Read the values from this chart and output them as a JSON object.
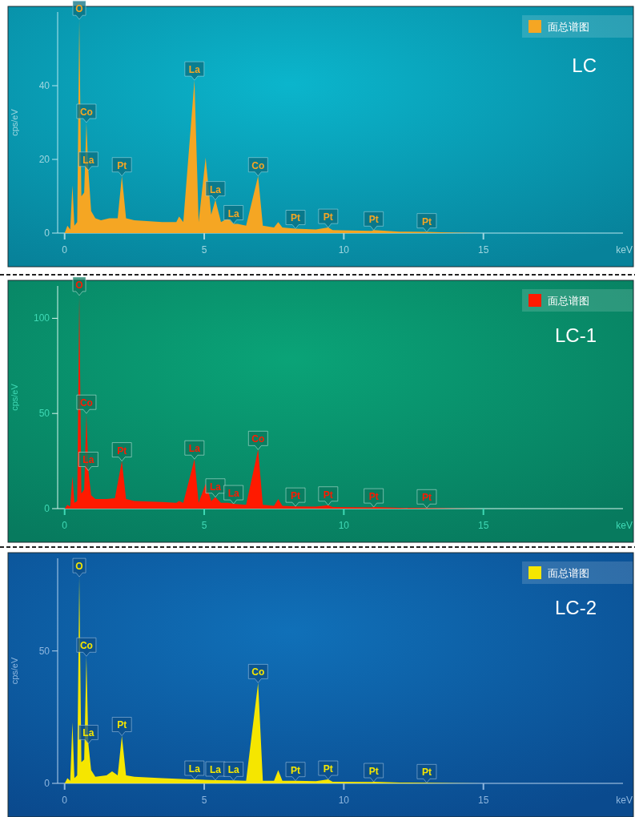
{
  "chart_data": [
    {
      "type": "area",
      "title": "LC",
      "xlabel": "keV",
      "ylabel": "cps/eV",
      "legend": "top right",
      "xlim": [
        -0.25,
        20
      ],
      "ylim": [
        0,
        60
      ],
      "xticks": [
        0,
        5,
        10,
        15
      ],
      "yticks": [
        0,
        20,
        40
      ],
      "x": [
        0,
        0.1,
        0.2,
        0.28,
        0.35,
        0.45,
        0.525,
        0.6,
        0.7,
        0.78,
        0.85,
        0.95,
        1.1,
        1.3,
        1.6,
        1.9,
        2.05,
        2.2,
        2.5,
        3.5,
        4,
        4.1,
        4.25,
        4.65,
        4.8,
        5.05,
        5.25,
        5.4,
        5.6,
        5.85,
        6.05,
        6.2,
        6.5,
        6.93,
        7.1,
        7.5,
        7.65,
        7.8,
        8.27,
        9,
        9.44,
        9.6,
        11,
        11.07,
        12,
        12.97,
        14,
        15
      ],
      "series": [
        {
          "name": "面总谱图",
          "color": "#f5a623",
          "values": [
            0,
            2,
            1,
            13,
            2,
            3,
            58,
            10,
            11,
            30,
            17,
            6,
            4,
            3.5,
            4,
            4,
            15.5,
            4,
            3.5,
            3,
            3,
            4.5,
            3,
            41.5,
            3,
            20.5,
            5,
            9,
            3,
            4,
            2.5,
            2.5,
            2,
            15.5,
            2,
            1.5,
            3,
            1.5,
            1.2,
            1,
            1.5,
            0.8,
            0.6,
            0.8,
            0.4,
            0.3,
            0.1,
            0
          ]
        }
      ],
      "annotations": [
        {
          "text": "O",
          "x": 0.525,
          "y": 58
        },
        {
          "text": "Co",
          "x": 0.78,
          "y": 30
        },
        {
          "text": "La",
          "x": 0.85,
          "y": 17
        },
        {
          "text": "Pt",
          "x": 2.05,
          "y": 15.5
        },
        {
          "text": "La",
          "x": 4.65,
          "y": 41.5
        },
        {
          "text": "La",
          "x": 5.4,
          "y": 9
        },
        {
          "text": "La",
          "x": 6.05,
          "y": 2.5
        },
        {
          "text": "Co",
          "x": 6.93,
          "y": 15.5
        },
        {
          "text": "Pt",
          "x": 8.27,
          "y": 1.2
        },
        {
          "text": "Pt",
          "x": 9.44,
          "y": 1.5
        },
        {
          "text": "Pt",
          "x": 11.07,
          "y": 0.8
        },
        {
          "text": "Pt",
          "x": 12.97,
          "y": 0.3
        }
      ]
    },
    {
      "type": "area",
      "title": "LC-1",
      "xlabel": "keV",
      "ylabel": "cps/eV",
      "legend": "top right",
      "xlim": [
        -0.25,
        20
      ],
      "ylim": [
        0,
        117
      ],
      "xticks": [
        0,
        5,
        10,
        15
      ],
      "yticks": [
        0,
        50,
        100
      ],
      "x": [
        0,
        0.1,
        0.2,
        0.28,
        0.35,
        0.45,
        0.525,
        0.6,
        0.7,
        0.78,
        0.85,
        0.95,
        1.1,
        1.5,
        1.8,
        2.05,
        2.2,
        2.5,
        3.5,
        4,
        4.1,
        4.25,
        4.65,
        4.8,
        5.05,
        5.25,
        5.4,
        5.6,
        5.85,
        6.05,
        6.5,
        6.93,
        7.1,
        7.5,
        7.65,
        7.8,
        8.27,
        9,
        9.44,
        9.6,
        11,
        11.07,
        12,
        12.97,
        14,
        15
      ],
      "series": [
        {
          "name": "面总谱图",
          "color": "#ff1a00",
          "values": [
            0,
            2,
            1,
            17,
            3,
            4,
            112,
            8,
            10,
            50,
            20,
            7,
            5,
            5,
            5.5,
            25,
            5,
            4,
            3.5,
            3,
            4,
            3,
            26,
            3,
            13,
            4,
            6,
            3,
            3,
            2.5,
            2,
            31,
            2,
            1.5,
            5,
            1.5,
            1.2,
            1,
            1.8,
            0.8,
            0.6,
            0.8,
            0.4,
            0.3,
            0.1,
            0
          ]
        }
      ],
      "annotations": [
        {
          "text": "O",
          "x": 0.525,
          "y": 112
        },
        {
          "text": "Co",
          "x": 0.78,
          "y": 50
        },
        {
          "text": "La",
          "x": 0.85,
          "y": 20
        },
        {
          "text": "Pt",
          "x": 2.05,
          "y": 25
        },
        {
          "text": "La",
          "x": 4.65,
          "y": 26
        },
        {
          "text": "La",
          "x": 5.4,
          "y": 6
        },
        {
          "text": "La",
          "x": 6.05,
          "y": 2.5
        },
        {
          "text": "Co",
          "x": 6.93,
          "y": 31
        },
        {
          "text": "Pt",
          "x": 8.27,
          "y": 1.2
        },
        {
          "text": "Pt",
          "x": 9.44,
          "y": 1.8
        },
        {
          "text": "Pt",
          "x": 11.07,
          "y": 0.8
        },
        {
          "text": "Pt",
          "x": 12.97,
          "y": 0.3
        }
      ]
    },
    {
      "type": "area",
      "title": "LC-2",
      "xlabel": "keV",
      "ylabel": "cps/eV",
      "legend": "top right",
      "xlim": [
        -0.25,
        20
      ],
      "ylim": [
        0,
        85
      ],
      "xticks": [
        0,
        5,
        10,
        15
      ],
      "yticks": [
        0,
        50
      ],
      "x": [
        0,
        0.1,
        0.2,
        0.28,
        0.35,
        0.45,
        0.525,
        0.6,
        0.7,
        0.78,
        0.85,
        0.95,
        1.1,
        1.5,
        1.7,
        1.9,
        2.05,
        2.2,
        2.5,
        3.5,
        4.5,
        4.65,
        5.4,
        6.05,
        6.5,
        6.93,
        7.1,
        7.5,
        7.65,
        7.8,
        8.27,
        9,
        9.44,
        9.6,
        11,
        11.07,
        12,
        12.97,
        14,
        15
      ],
      "series": [
        {
          "name": "面总谱图",
          "color": "#f5e600",
          "values": [
            0,
            2,
            1,
            23,
            2,
            3,
            78,
            8,
            9,
            48,
            15,
            5,
            2.5,
            3,
            4.5,
            3,
            18,
            3,
            2.5,
            2,
            1.5,
            1.5,
            1.2,
            1.1,
            1,
            38,
            1,
            1,
            5,
            1,
            1,
            0.8,
            1.5,
            0.6,
            0.5,
            0.6,
            0.3,
            0.2,
            0.1,
            0
          ]
        }
      ],
      "annotations": [
        {
          "text": "O",
          "x": 0.525,
          "y": 78
        },
        {
          "text": "Co",
          "x": 0.78,
          "y": 48
        },
        {
          "text": "La",
          "x": 0.85,
          "y": 15
        },
        {
          "text": "Pt",
          "x": 2.05,
          "y": 18
        },
        {
          "text": "La",
          "x": 4.65,
          "y": 1.5
        },
        {
          "text": "La",
          "x": 5.4,
          "y": 1.2
        },
        {
          "text": "La",
          "x": 6.05,
          "y": 1.1
        },
        {
          "text": "Co",
          "x": 6.93,
          "y": 38
        },
        {
          "text": "Pt",
          "x": 8.27,
          "y": 1
        },
        {
          "text": "Pt",
          "x": 9.44,
          "y": 1.5
        },
        {
          "text": "Pt",
          "x": 11.07,
          "y": 0.6
        },
        {
          "text": "Pt",
          "x": 12.97,
          "y": 0.2
        }
      ]
    }
  ]
}
